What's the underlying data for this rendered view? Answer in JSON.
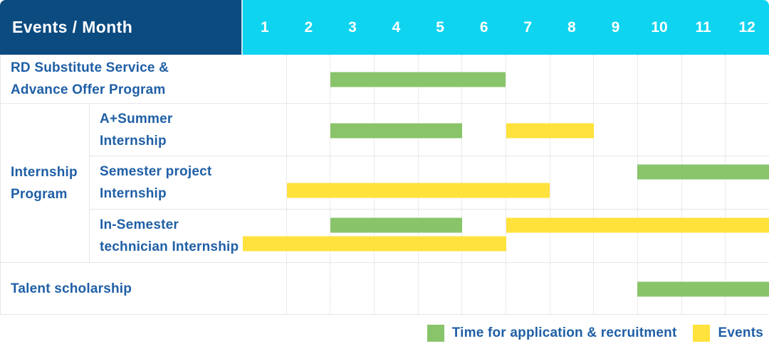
{
  "header": {
    "title": "Events / Month",
    "months": [
      "1",
      "2",
      "3",
      "4",
      "5",
      "6",
      "7",
      "8",
      "9",
      "10",
      "11",
      "12"
    ]
  },
  "colors": {
    "header_bg": "#0C4B80",
    "months_bg": "#0ED4EF",
    "header_text": "#FFFFFF",
    "label_text": "#1F5FA6",
    "application_green": "#8AC46A",
    "events_yellow": "#FFE23C",
    "grid_line": "#E7E7E7"
  },
  "legend": {
    "items": [
      {
        "type": "application",
        "label": "Time for application & recruitment"
      },
      {
        "type": "events",
        "label": "Events"
      }
    ]
  },
  "chart_data": {
    "type": "gantt",
    "unit": "month",
    "x_range": [
      1,
      12
    ],
    "x_ticks": [
      "1",
      "2",
      "3",
      "4",
      "5",
      "6",
      "7",
      "8",
      "9",
      "10",
      "11",
      "12"
    ],
    "legend": {
      "application": "Time for application & recruitment",
      "events": "Events"
    },
    "group_label": "Internship Program",
    "group_label_lines": [
      "Internship",
      "Program"
    ],
    "rows": [
      {
        "group": null,
        "label": "RD Substitute Service & Advance Offer Program",
        "label_lines": [
          "RD Substitute Service &",
          "Advance Offer Program"
        ],
        "bars": [
          {
            "type": "application",
            "start_month": 3,
            "end_month": 6,
            "lane": "center"
          }
        ]
      },
      {
        "group": "Internship Program",
        "label": "A+Summer Internship",
        "label_lines": [
          "A+Summer",
          "Internship"
        ],
        "bars": [
          {
            "type": "application",
            "start_month": 3,
            "end_month": 5,
            "lane": "center"
          },
          {
            "type": "events",
            "start_month": 7,
            "end_month": 8,
            "lane": "center"
          }
        ]
      },
      {
        "group": "Internship Program",
        "label": "Semester project Internship",
        "label_lines": [
          "Semester project",
          "Internship"
        ],
        "bars": [
          {
            "type": "application",
            "start_month": 10,
            "end_month": 12,
            "lane": "top"
          },
          {
            "type": "events",
            "start_month": 2,
            "end_month": 7,
            "lane": "bottom"
          }
        ]
      },
      {
        "group": "Internship Program",
        "label": "In-Semester technician Internship",
        "label_lines": [
          "In-Semester",
          "technician Internship"
        ],
        "bars": [
          {
            "type": "application",
            "start_month": 3,
            "end_month": 5,
            "lane": "top"
          },
          {
            "type": "events",
            "start_month": 7,
            "end_month": 12,
            "lane": "top"
          },
          {
            "type": "events",
            "start_month": 1,
            "end_month": 6,
            "lane": "bottom"
          }
        ]
      },
      {
        "group": null,
        "label": "Talent scholarship",
        "label_lines": [
          "Talent scholarship"
        ],
        "bars": [
          {
            "type": "application",
            "start_month": 10,
            "end_month": 12,
            "lane": "center"
          }
        ]
      }
    ]
  }
}
